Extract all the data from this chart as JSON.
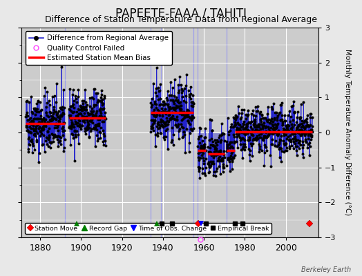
{
  "title": "PAPEETE-FAAA / TAHITI",
  "subtitle": "Difference of Station Temperature Data from Regional Average",
  "ylabel": "Monthly Temperature Anomaly Difference (°C)",
  "xlabel_ticks": [
    1880,
    1900,
    1920,
    1940,
    1960,
    1980,
    2000
  ],
  "ylim": [
    -3,
    3
  ],
  "xlim": [
    1871,
    2016
  ],
  "background_color": "#e8e8e8",
  "plot_bg_color": "#cccccc",
  "grid_color": "#ffffff",
  "title_fontsize": 12,
  "subtitle_fontsize": 9,
  "ylabel_fontsize": 7.5,
  "watermark": "Berkeley Earth",
  "segments_data": [
    [
      1873,
      1892,
      0.25,
      0.42
    ],
    [
      1894,
      1912,
      0.42,
      0.38
    ],
    [
      1934,
      1955,
      0.57,
      0.42
    ],
    [
      1957,
      1961,
      -0.52,
      0.38
    ],
    [
      1962,
      1970,
      -0.62,
      0.38
    ],
    [
      1971,
      1975,
      -0.52,
      0.38
    ],
    [
      1975,
      2013,
      0.02,
      0.34
    ]
  ],
  "tall_vlines": [
    {
      "x": 1892,
      "color": "#9999ee"
    },
    {
      "x": 1934,
      "color": "#9999ee"
    },
    {
      "x": 1939,
      "color": "#9999ee"
    },
    {
      "x": 1955,
      "color": "#9999ee"
    },
    {
      "x": 1957,
      "color": "#9999ee"
    },
    {
      "x": 1971,
      "color": "#9999ee"
    }
  ],
  "station_moves": [
    1957.3,
    2011.5
  ],
  "record_gaps": [
    1898,
    1937
  ],
  "obs_changes": [
    1958.5
  ],
  "empirical_breaks": [
    1939.5,
    1944.5,
    1961,
    1975,
    1979
  ],
  "qc_failed_x": 1958.3,
  "qc_failed_y": -3.05,
  "bias_segments": [
    {
      "xstart": 1873,
      "xend": 1892,
      "bias": 0.25
    },
    {
      "xstart": 1894,
      "xend": 1912,
      "bias": 0.42
    },
    {
      "xstart": 1934,
      "xend": 1955,
      "bias": 0.57
    },
    {
      "xstart": 1957,
      "xend": 1961,
      "bias": -0.52
    },
    {
      "xstart": 1962,
      "xend": 1970,
      "bias": -0.62
    },
    {
      "xstart": 1971,
      "xend": 1975,
      "bias": -0.52
    },
    {
      "xstart": 1975,
      "xend": 2013,
      "bias": 0.02
    }
  ],
  "marker_y": -2.6,
  "line_color": "#2222cc",
  "stem_color": "#8888cc",
  "dot_color": "black",
  "dot_size": 3.5
}
